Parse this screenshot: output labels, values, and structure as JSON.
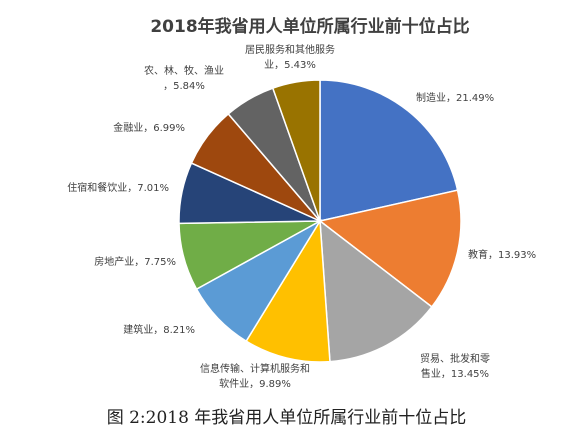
{
  "chart_data": {
    "type": "pie",
    "title": "2018年我省用人单位所属行业前十位占比",
    "label_separator": "，",
    "slices": [
      {
        "label": "制造业",
        "value": 21.49,
        "display": "21.49%",
        "color": "#4472C4"
      },
      {
        "label": "教育",
        "value": 13.93,
        "display": "13.93%",
        "color": "#ED7D31"
      },
      {
        "label": "贸易、批发和零售业",
        "value": 13.45,
        "display": "13.45%",
        "color": "#A5A5A5"
      },
      {
        "label": "信息传输、计算机服务和软件业",
        "value": 9.89,
        "display": "9.89%",
        "color": "#FFC000"
      },
      {
        "label": "建筑业",
        "value": 8.21,
        "display": "8.21%",
        "color": "#5B9BD5"
      },
      {
        "label": "房地产业",
        "value": 7.75,
        "display": "7.75%",
        "color": "#70AD47"
      },
      {
        "label": "住宿和餐饮业",
        "value": 7.01,
        "display": "7.01%",
        "color": "#264478"
      },
      {
        "label": "金融业",
        "value": 6.99,
        "display": "6.99%",
        "color": "#9E480E"
      },
      {
        "label": "农、林、牧、渔业",
        "value": 5.84,
        "display": "5.84%",
        "color": "#636363"
      },
      {
        "label": "居民服务和其他服务业",
        "value": 5.43,
        "display": "5.43%",
        "color": "#997300"
      }
    ]
  },
  "caption": "图 2:2018 年我省用人单位所属行业前十位占比"
}
